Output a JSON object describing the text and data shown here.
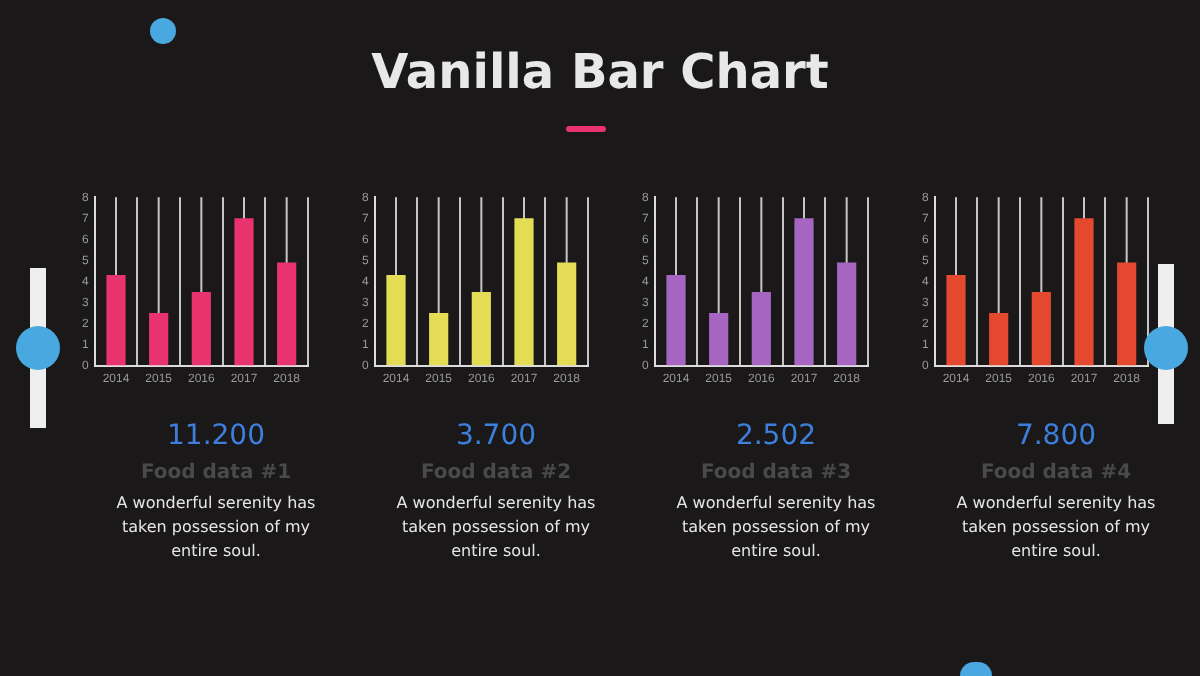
{
  "chart_data": [
    {
      "type": "other",
      "title": "Vanilla Bar Chart"
    },
    {
      "type": "bar",
      "categories": [
        "2014",
        "2015",
        "2016",
        "2017",
        "2018"
      ],
      "values": [
        4.3,
        2.5,
        3.5,
        7,
        4.9
      ],
      "color": "#e8336f",
      "ylim": [
        0,
        8
      ],
      "yticks": [
        0,
        1,
        2,
        3,
        4,
        5,
        6,
        7,
        8
      ],
      "grid": "x",
      "annotations": [
        "11.200",
        "Food data #1",
        "A wonderful serenity has taken possession of my entire soul."
      ]
    },
    {
      "type": "bar",
      "categories": [
        "2014",
        "2015",
        "2016",
        "2017",
        "2018"
      ],
      "values": [
        4.3,
        2.5,
        3.5,
        7,
        4.9
      ],
      "color": "#e4dc55",
      "ylim": [
        0,
        8
      ],
      "yticks": [
        0,
        1,
        2,
        3,
        4,
        5,
        6,
        7,
        8
      ],
      "grid": "x",
      "annotations": [
        "3.700",
        "Food data #2",
        "A wonderful serenity has taken possession of my entire soul."
      ]
    },
    {
      "type": "bar",
      "categories": [
        "2014",
        "2015",
        "2016",
        "2017",
        "2018"
      ],
      "values": [
        4.3,
        2.5,
        3.5,
        7,
        4.9
      ],
      "color": "#a565c0",
      "ylim": [
        0,
        8
      ],
      "yticks": [
        0,
        1,
        2,
        3,
        4,
        5,
        6,
        7,
        8
      ],
      "grid": "x",
      "annotations": [
        "2.502",
        "Food data #3",
        "A wonderful serenity has taken possession of my entire soul."
      ]
    },
    {
      "type": "bar",
      "categories": [
        "2014",
        "2015",
        "2016",
        "2017",
        "2018"
      ],
      "values": [
        4.3,
        2.5,
        3.5,
        7,
        4.9
      ],
      "color": "#e4482f",
      "ylim": [
        0,
        8
      ],
      "yticks": [
        0,
        1,
        2,
        3,
        4,
        5,
        6,
        7,
        8
      ],
      "grid": "x",
      "annotations": [
        "7.800",
        "Food data #4",
        "A wonderful serenity has taken possession of my entire soul."
      ]
    }
  ]
}
